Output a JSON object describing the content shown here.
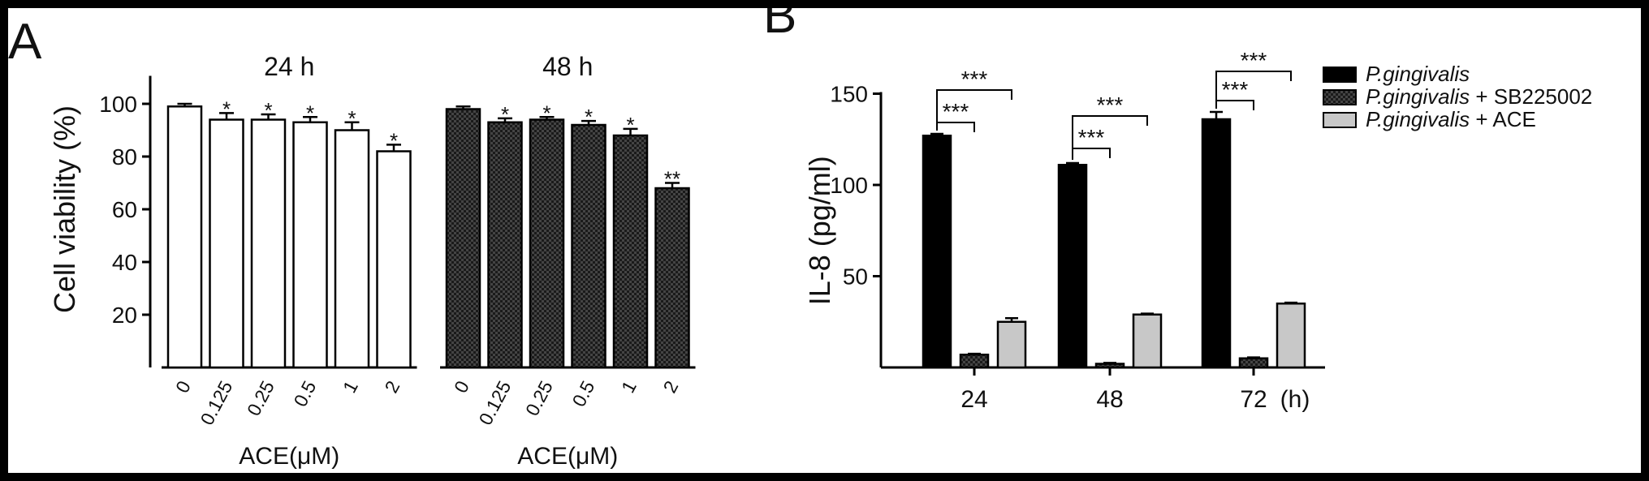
{
  "panel_labels": {
    "a": "A",
    "b": "B"
  },
  "chart_data": [
    {
      "type": "bar",
      "panel": "A",
      "ylabel": "Cell viability (%)",
      "ylim": [
        0,
        110
      ],
      "yticks": [
        "20",
        "40",
        "60",
        "80",
        "100"
      ],
      "groups": [
        {
          "title": "24 h",
          "xlabel": "ACE(μM)",
          "fill": "white",
          "categories": [
            "0",
            "0.125",
            "0.25",
            "0.5",
            "1",
            "2"
          ],
          "values": [
            99,
            94,
            94,
            93,
            90,
            82
          ],
          "errors": [
            1,
            2.5,
            2,
            2,
            3,
            2.5
          ],
          "significance": [
            "",
            "*",
            "*",
            "*",
            "*",
            "*"
          ]
        },
        {
          "title": "48 h",
          "xlabel": "ACE(μM)",
          "fill": "crosshatch",
          "categories": [
            "0",
            "0.125",
            "0.25",
            "0.5",
            "1",
            "2"
          ],
          "values": [
            98,
            93,
            94,
            92,
            88,
            68
          ],
          "errors": [
            1,
            1.5,
            1,
            1.5,
            2.5,
            2
          ],
          "significance": [
            "",
            "*",
            "*",
            "*",
            "*",
            "**"
          ]
        }
      ]
    },
    {
      "type": "bar",
      "panel": "B",
      "ylabel": "IL-8 (pg/ml)",
      "ylim": [
        0,
        150
      ],
      "yticks": [
        "50",
        "100",
        "150"
      ],
      "categories": [
        "24",
        "48",
        "72"
      ],
      "x_unit": "(h)",
      "series": [
        {
          "name": "P.gingivalis",
          "name_suffix": "",
          "fill": "black",
          "values": [
            127,
            111,
            136
          ],
          "errors": [
            1,
            1,
            4
          ]
        },
        {
          "name": "P.gingivalis",
          "name_suffix": " + SB225002",
          "fill": "crosshatch",
          "values": [
            7,
            2,
            5
          ],
          "errors": [
            0.5,
            0.5,
            0.5
          ]
        },
        {
          "name": "P.gingivalis",
          "name_suffix": " + ACE",
          "fill": "#c8c8c8",
          "values": [
            25,
            29,
            35
          ],
          "errors": [
            2,
            0.5,
            0.5
          ]
        }
      ],
      "brackets": [
        {
          "group": 0,
          "from": 0,
          "to": 1,
          "label": "***"
        },
        {
          "group": 0,
          "from": 0,
          "to": 2,
          "label": "***"
        },
        {
          "group": 1,
          "from": 0,
          "to": 1,
          "label": "***"
        },
        {
          "group": 1,
          "from": 0,
          "to": 2,
          "label": "***"
        },
        {
          "group": 2,
          "from": 0,
          "to": 1,
          "label": "***"
        },
        {
          "group": 2,
          "from": 0,
          "to": 2,
          "label": "***"
        }
      ],
      "legend_position": "top-right"
    }
  ]
}
